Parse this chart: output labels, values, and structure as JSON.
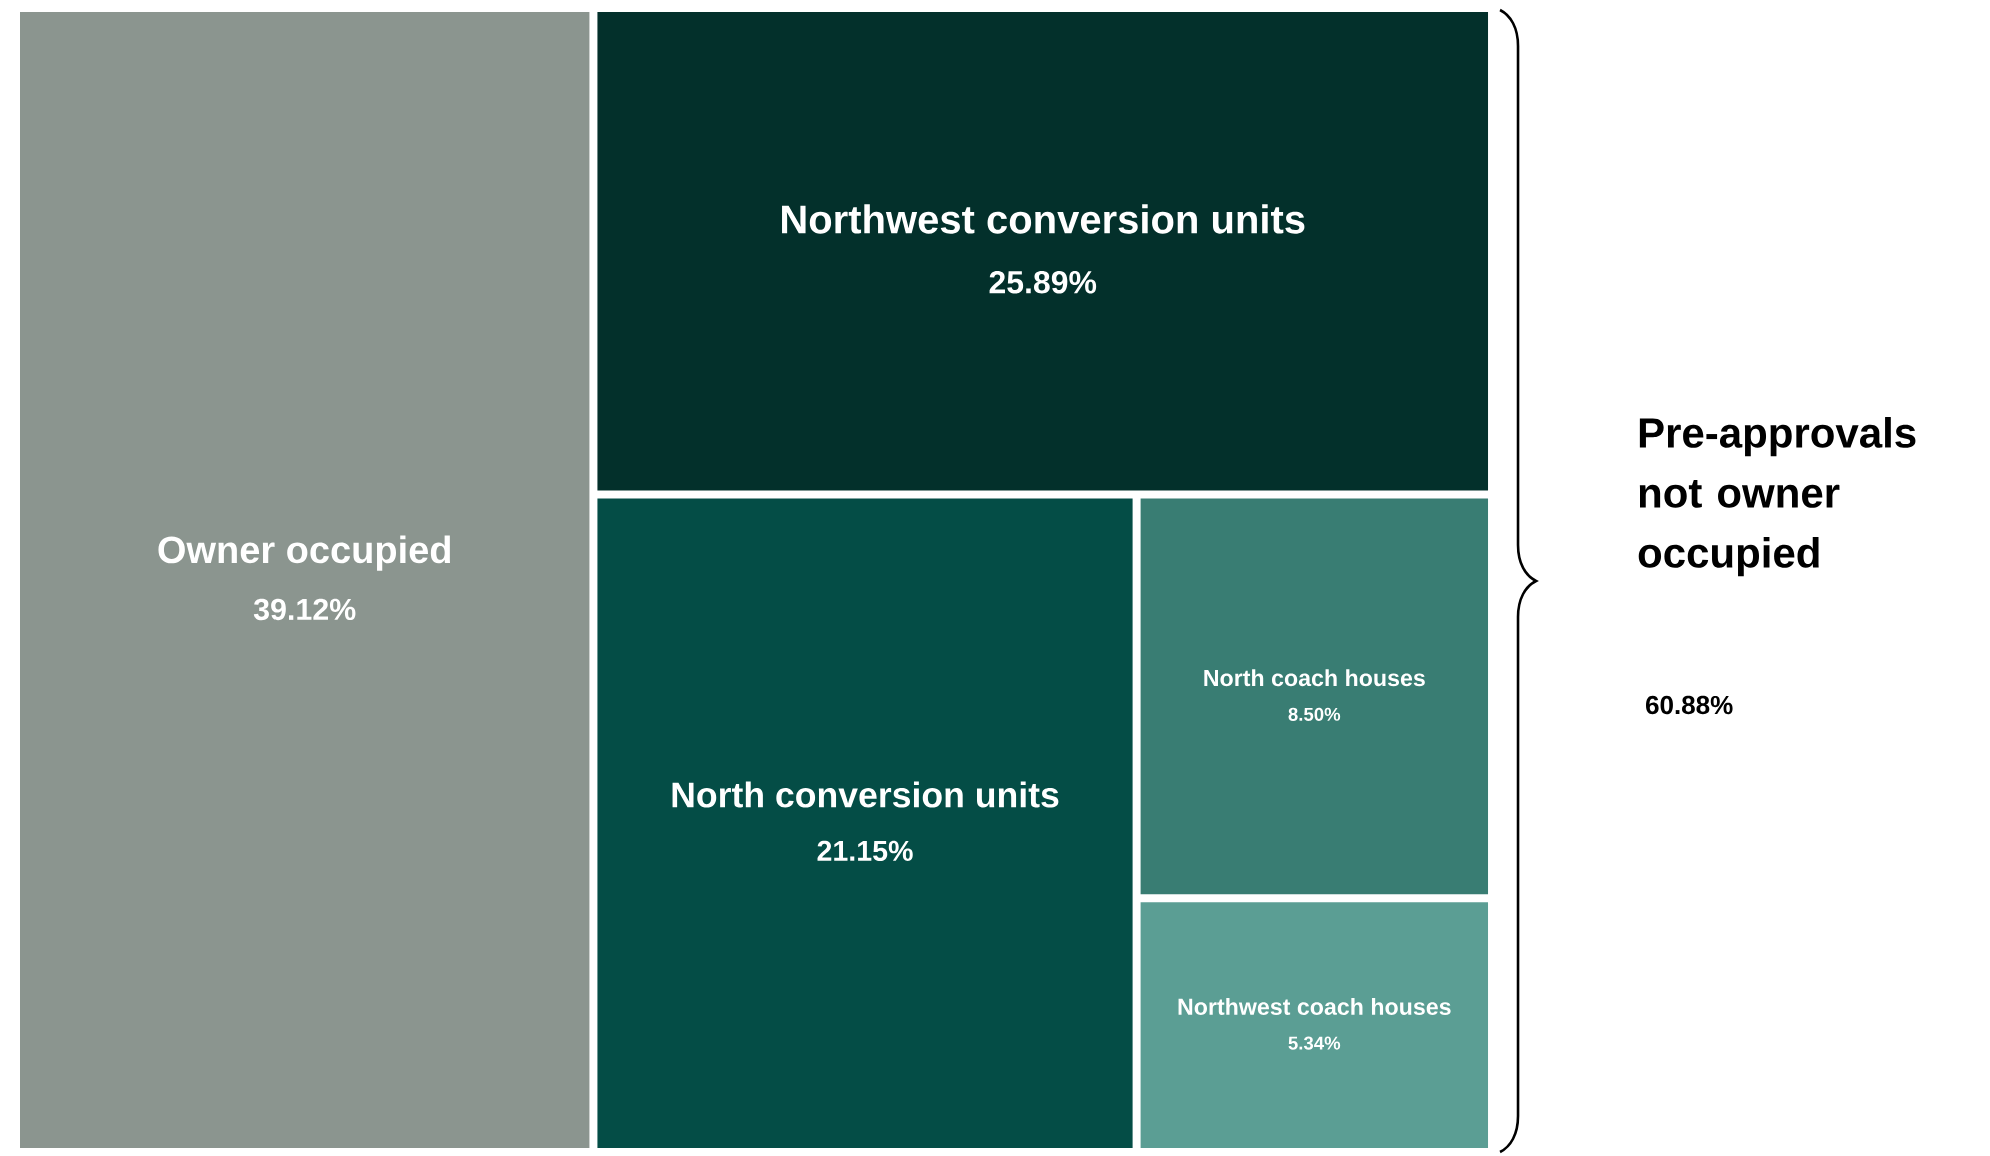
{
  "chart_data": {
    "type": "other",
    "categories": [
      "Owner occupied",
      "Northwest conversion units",
      "North conversion units",
      "North coach houses",
      "Northwest coach houses"
    ],
    "values": [
      39.12,
      25.89,
      21.15,
      8.5,
      5.34
    ],
    "value_labels": [
      "39.12%",
      "25.89%",
      "21.15%",
      "8.50%",
      "5.34%"
    ],
    "colors": [
      "#8b958f",
      "#03302b",
      "#044d46",
      "#397d73",
      "#5b9e94"
    ],
    "annotations": [
      "Pre-approvals not owner occupied",
      "60.88%"
    ]
  }
}
